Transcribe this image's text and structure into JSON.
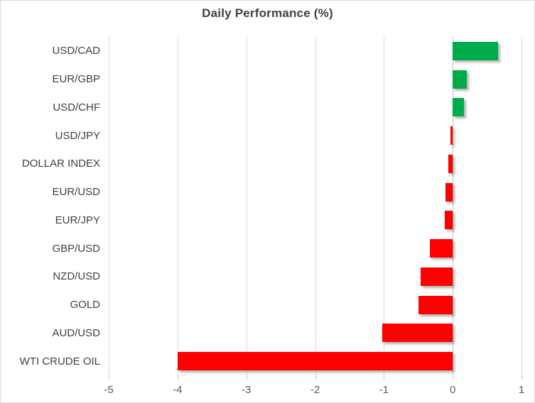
{
  "chart_data": {
    "type": "bar",
    "orientation": "horizontal",
    "title": "Daily Performance (%)",
    "categories": [
      "USD/CAD",
      "EUR/GBP",
      "USD/CHF",
      "USD/JPY",
      "DOLLAR INDEX",
      "EUR/USD",
      "EUR/JPY",
      "GBP/USD",
      "NZD/USD",
      "GOLD",
      "AUD/USD",
      "WTI CRUDE OIL"
    ],
    "values": [
      0.66,
      0.21,
      0.16,
      -0.03,
      -0.06,
      -0.11,
      -0.12,
      -0.33,
      -0.47,
      -0.5,
      -1.02,
      -4.0
    ],
    "xlabel": "",
    "ylabel": "",
    "xlim": [
      -5,
      1
    ],
    "x_ticks": [
      -5,
      -4,
      -3,
      -2,
      -1,
      0,
      1
    ],
    "grid": "vertical-gridlines-on",
    "legend": false,
    "positive_color": "#00AB4C",
    "negative_color": "#FF0000"
  }
}
